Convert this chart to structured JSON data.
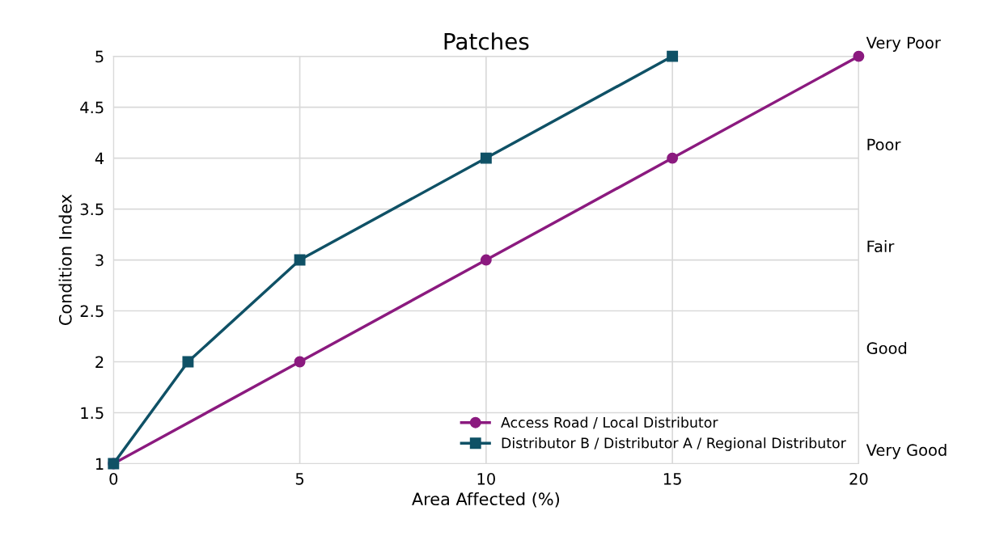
{
  "chart_data": {
    "type": "line",
    "title": "Patches",
    "xlabel": "Area Affected (%)",
    "ylabel": "Condition Index",
    "xlim": [
      0,
      20
    ],
    "xticks": [
      0,
      5,
      10,
      15,
      20
    ],
    "ylim": [
      1,
      5
    ],
    "yticks": [
      1,
      1.5,
      2,
      2.5,
      3,
      3.5,
      4,
      4.5,
      5
    ],
    "annotations": [
      "Very Poor",
      "Poor",
      "Fair",
      "Good",
      "Very Good"
    ],
    "grid": true,
    "legend": "bottom right",
    "line_style": "solid",
    "series": [
      {
        "name": "Access Road / Local Distributor",
        "color": "#8b1a7f",
        "marker": "circle",
        "x": [
          0,
          5,
          10,
          15,
          20
        ],
        "values": [
          1,
          2,
          3,
          4,
          5
        ]
      },
      {
        "name": "Distributor B / Distributor A / Regional Distributor",
        "color": "#0f5166",
        "marker": "square",
        "x": [
          0,
          2,
          5,
          10,
          15
        ],
        "values": [
          1,
          2,
          3,
          4,
          5
        ]
      }
    ]
  }
}
